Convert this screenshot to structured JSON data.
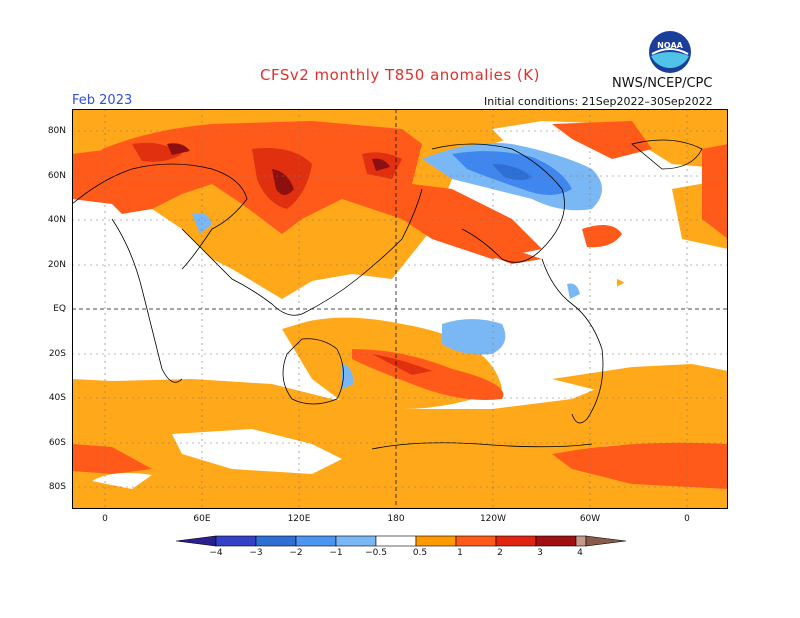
{
  "title": "CFSv2 monthly T850 anomalies (K)",
  "agency": "NWS/NCEP/CPC",
  "logo_text": "NOAA",
  "forecast_month": "Feb 2023",
  "initial_conditions": "Initial conditions: 21Sep2022–30Sep2022",
  "lat_labels": [
    "80N",
    "60N",
    "40N",
    "20N",
    "EQ",
    "20S",
    "40S",
    "60S",
    "80S"
  ],
  "lon_labels": [
    "0",
    "60E",
    "120E",
    "180",
    "120W",
    "60W",
    "0"
  ],
  "colorbar": {
    "labels": [
      "−4",
      "−3",
      "−2",
      "−1",
      "−0.5",
      "0.5",
      "1",
      "2",
      "3",
      "4"
    ],
    "colors": [
      "#2a1f8f",
      "#3340c8",
      "#2e6fd6",
      "#4a96f0",
      "#7ab8f5",
      "#ffffff",
      "#ff9900",
      "#ff5a1a",
      "#e02410",
      "#a01010",
      "#c89888",
      "#8a5a4a"
    ]
  },
  "colors": {
    "weak_warm": "#ffa81a",
    "warm": "#ff5a1a",
    "strong_warm": "#e03010",
    "very_warm": "#8c1010",
    "weak_cold": "#7ab8f5",
    "cold": "#3f86ee",
    "strong_cold": "#2e6fd6"
  }
}
